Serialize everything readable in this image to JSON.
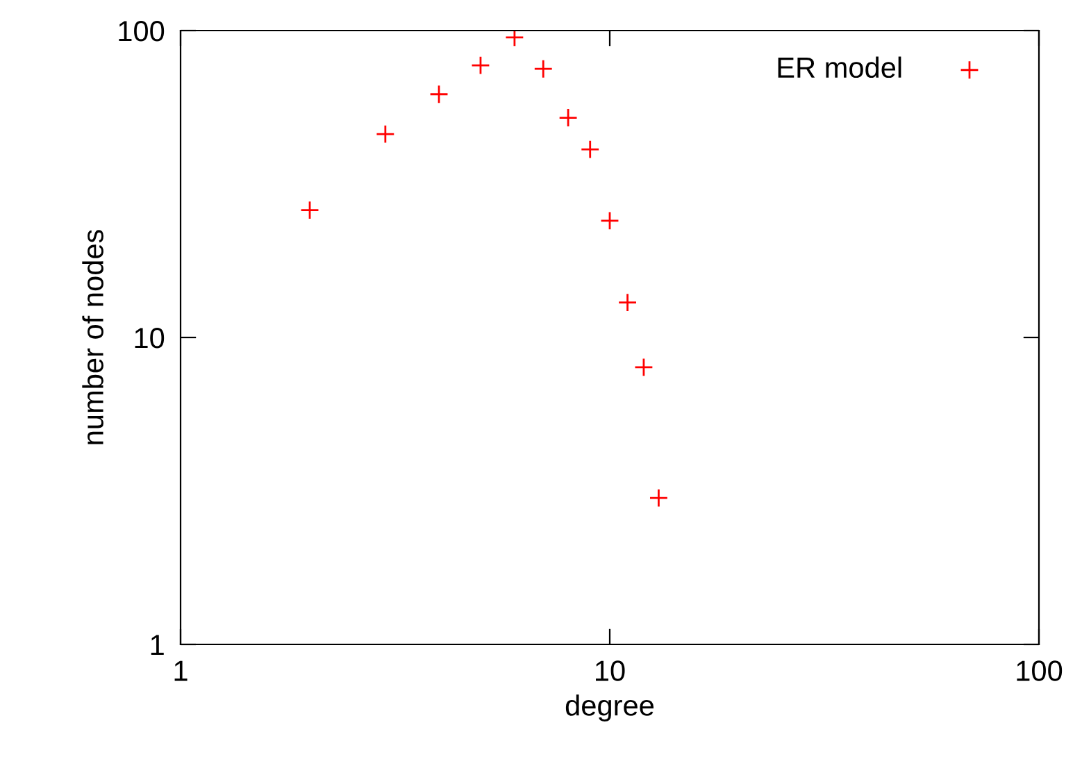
{
  "chart_data": {
    "type": "scatter",
    "xlabel": "degree",
    "ylabel": "number of nodes",
    "log": "xy",
    "xlim": [
      1,
      100
    ],
    "ylim": [
      1,
      100
    ],
    "xticks": [
      1,
      10,
      100
    ],
    "yticks": [
      1,
      10,
      100
    ],
    "grid": false,
    "legend": "top right",
    "marker": "cross",
    "x": [
      2,
      3,
      4,
      5,
      6,
      7,
      8,
      9,
      10,
      11,
      12,
      13
    ],
    "series": [
      {
        "name": "ER model",
        "color": "#ff0000",
        "values": [
          26,
          46,
          62,
          77,
          95,
          75,
          52,
          41,
          24,
          13,
          8,
          3
        ]
      }
    ]
  }
}
